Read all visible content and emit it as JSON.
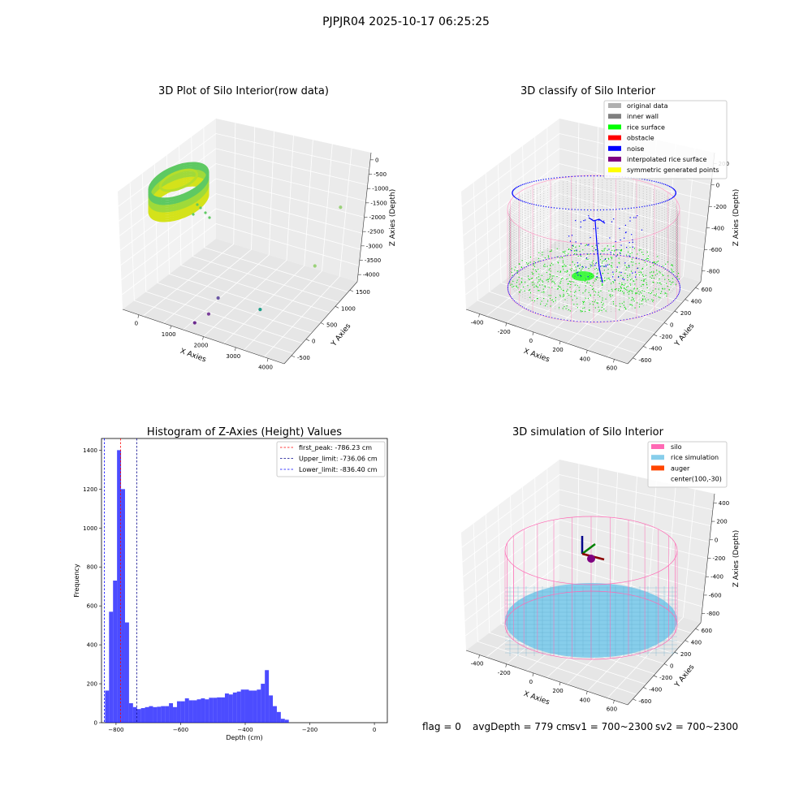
{
  "figure": {
    "suptitle": "PJPJR04 2025-10-17 06:25:25"
  },
  "chart_data": [
    {
      "type": "scatter",
      "title": "3D Plot of Silo Interior(row data)",
      "xlabel": "X Axies",
      "ylabel": "Y Axies",
      "zlabel": "Z Axies (Depth)",
      "x_ticks": [
        "0",
        "1000",
        "2000",
        "3000",
        "4000"
      ],
      "y_ticks": [
        "-500",
        "0",
        "500",
        "1000",
        "1500"
      ],
      "z_ticks": [
        "0",
        "-500",
        "-1000",
        "-1500",
        "-2000",
        "-2500",
        "-3000",
        "-3500",
        "-4000"
      ],
      "xlim": [
        -500,
        4500
      ],
      "ylim": [
        -700,
        1800
      ],
      "zlim": [
        -4200,
        200
      ],
      "outliers": [
        {
          "x": 3700,
          "y": 1500,
          "z": -1000,
          "color": "#9bd27a"
        },
        {
          "x": 3600,
          "y": 900,
          "z": -2600,
          "color": "#9bd27a"
        },
        {
          "x": 2600,
          "y": 300,
          "z": -4000,
          "color": "#1f9e89"
        },
        {
          "x": 1300,
          "y": 300,
          "z": -4100,
          "color": "#6a56a4"
        },
        {
          "x": 1700,
          "y": -300,
          "z": -3900,
          "color": "#7a3d9a"
        },
        {
          "x": 1500,
          "y": -500,
          "z": -4100,
          "color": "#6b2a8e"
        }
      ]
    },
    {
      "type": "scatter",
      "title": "3D classify of Silo Interior",
      "xlabel": "X Axies",
      "ylabel": "Y Axies",
      "zlabel": "Z Axies (Depth)",
      "x_ticks": [
        "-400",
        "-200",
        "0",
        "200",
        "400",
        "600"
      ],
      "y_ticks": [
        "-600",
        "-400",
        "-200",
        "0",
        "200",
        "400",
        "600"
      ],
      "z_ticks": [
        "200",
        "0",
        "-200",
        "-400",
        "-600",
        "-800"
      ],
      "legend": [
        {
          "label": "original data",
          "color": "#b0b0b0"
        },
        {
          "label": "inner wall",
          "color": "#808080"
        },
        {
          "label": "rice surface",
          "color": "#00ff00"
        },
        {
          "label": "obstacle",
          "color": "#ff0000"
        },
        {
          "label": "noise",
          "color": "#0000ff"
        },
        {
          "label": "interpolated rice surface",
          "color": "#800080"
        },
        {
          "label": "symmetric generated points",
          "color": "#ffff00"
        }
      ],
      "legend_loc": "upper right"
    },
    {
      "type": "bar",
      "title": "Histogram of Z-Axies (Height) Values",
      "xlabel": "Depth (cm)",
      "ylabel": "Frequency",
      "xlim": [
        -845,
        40
      ],
      "ylim": [
        0,
        1460
      ],
      "x_ticks": [
        -800,
        -600,
        -400,
        -200,
        0
      ],
      "y_ticks": [
        0,
        200,
        400,
        600,
        800,
        1000,
        1200,
        1400
      ],
      "bin_start": -834,
      "bin_width": 12.37,
      "values": [
        165,
        570,
        730,
        1400,
        1200,
        515,
        100,
        80,
        70,
        75,
        80,
        85,
        80,
        82,
        85,
        85,
        100,
        80,
        110,
        110,
        125,
        115,
        115,
        120,
        125,
        120,
        128,
        128,
        130,
        130,
        150,
        145,
        155,
        160,
        170,
        170,
        165,
        165,
        170,
        200,
        270,
        140,
        85,
        55,
        20,
        15
      ],
      "bar_color": "#0000ff",
      "vlines": [
        {
          "label": "first_peak: -786.23 cm",
          "x": -786.23,
          "color": "#ff0000"
        },
        {
          "label": "Upper_limit: -736.06 cm",
          "x": -736.06,
          "color": "#00008b"
        },
        {
          "label": "Lower_limit: -836.40 cm",
          "x": -836.4,
          "color": "#0000ff"
        }
      ],
      "legend_loc": "upper right"
    },
    {
      "type": "scatter",
      "title": "3D simulation of Silo Interior",
      "xlabel": "X Axies",
      "ylabel": "Y Axies",
      "zlabel": "Z Axies (Depth)",
      "x_ticks": [
        "-400",
        "-200",
        "0",
        "200",
        "400",
        "600"
      ],
      "y_ticks": [
        "-600",
        "-400",
        "-200",
        "0",
        "200",
        "400",
        "600"
      ],
      "z_ticks": [
        "400",
        "200",
        "0",
        "-200",
        "-400",
        "-600",
        "-800"
      ],
      "legend": [
        {
          "label": "silo",
          "color": "#ff69b4"
        },
        {
          "label": "rice simulation",
          "color": "#87ceeb"
        },
        {
          "label": "auger",
          "color": "#ff4500"
        },
        {
          "label": "center(100,-30)",
          "color": ""
        }
      ],
      "legend_loc": "upper right"
    }
  ],
  "status": {
    "flag": "flag = 0",
    "avg_depth": "avgDepth = 779 cm",
    "sv1": "sv1 = 700~2300",
    "sv2": "sv2 = 700~2300"
  }
}
